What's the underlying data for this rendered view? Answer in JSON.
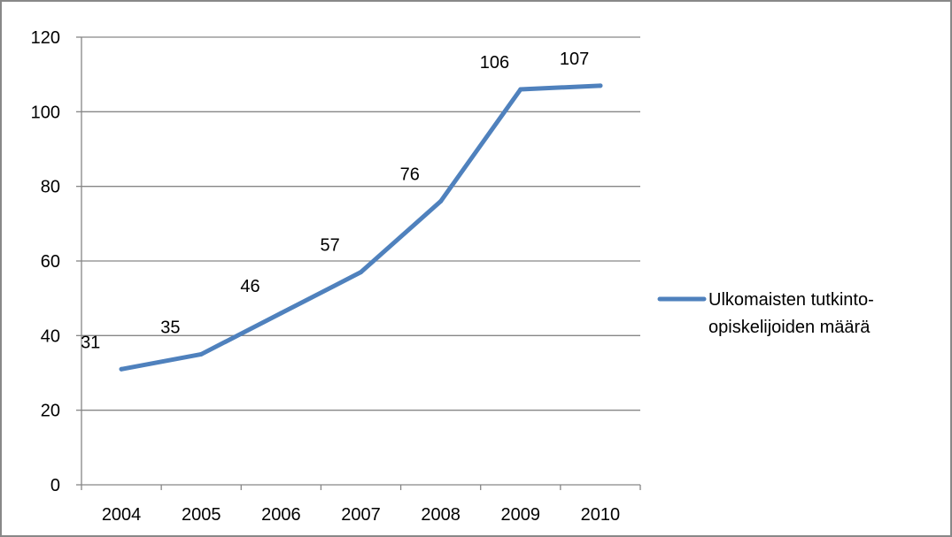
{
  "chart_data": {
    "type": "line",
    "title": "",
    "xlabel": "",
    "ylabel": "",
    "categories": [
      "2004",
      "2005",
      "2006",
      "2007",
      "2008",
      "2009",
      "2010"
    ],
    "series": [
      {
        "name": "Ulkomaisten tutkinto-opiskelijoiden määrä",
        "name_lines": [
          "Ulkomaisten tutkinto-",
          "opiskelijoiden määrä"
        ],
        "values": [
          31,
          35,
          46,
          57,
          76,
          106,
          107
        ],
        "color": "#4F81BD"
      }
    ],
    "ylim": [
      0,
      120
    ],
    "yticks": [
      "0",
      "20",
      "40",
      "60",
      "80",
      "100",
      "120"
    ],
    "data_labels": [
      "31",
      "35",
      "46",
      "57",
      "76",
      "106",
      "107"
    ],
    "grid": true,
    "legend_position": "right"
  }
}
